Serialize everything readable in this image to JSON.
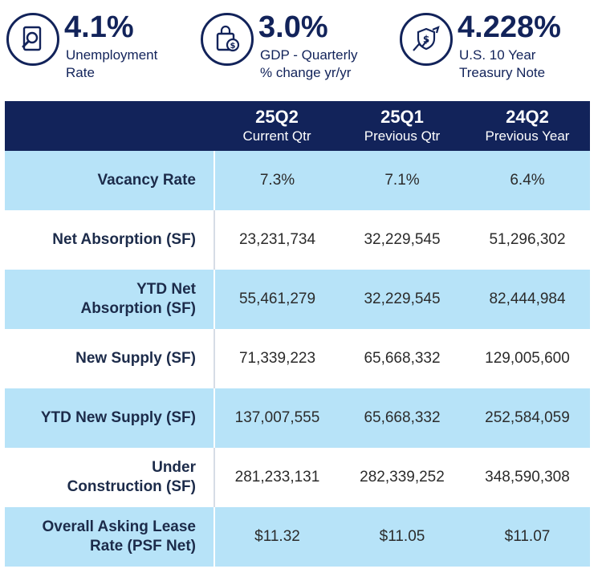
{
  "indicators": [
    {
      "value": "4.1%",
      "label_lines": [
        "Unemployment",
        "Rate"
      ],
      "icon": "magnifier-document-icon"
    },
    {
      "value": "3.0%",
      "label_lines": [
        "GDP - Quarterly",
        "% change yr/yr"
      ],
      "icon": "shopping-bag-coin-icon"
    },
    {
      "value": "4.228%",
      "label_lines": [
        "U.S. 10 Year",
        "Treasury Note"
      ],
      "icon": "dollar-shield-chart-icon"
    }
  ],
  "table": {
    "columns": [
      {
        "period": "25Q2",
        "sub": "Current Qtr"
      },
      {
        "period": "25Q1",
        "sub": "Previous Qtr"
      },
      {
        "period": "24Q2",
        "sub": "Previous Year"
      }
    ],
    "rows": [
      {
        "label_lines": [
          "Vacancy Rate"
        ],
        "values": [
          "7.3%",
          "7.1%",
          "6.4%"
        ]
      },
      {
        "label_lines": [
          "Net Absorption (SF)"
        ],
        "values": [
          "23,231,734",
          "32,229,545",
          "51,296,302"
        ]
      },
      {
        "label_lines": [
          "YTD Net",
          "Absorption (SF)"
        ],
        "values": [
          "55,461,279",
          "32,229,545",
          "82,444,984"
        ]
      },
      {
        "label_lines": [
          "New Supply (SF)"
        ],
        "values": [
          "71,339,223",
          "65,668,332",
          "129,005,600"
        ]
      },
      {
        "label_lines": [
          "YTD New Supply (SF)"
        ],
        "values": [
          "137,007,555",
          "65,668,332",
          "252,584,059"
        ]
      },
      {
        "label_lines": [
          "Under",
          "Construction (SF)"
        ],
        "values": [
          "281,233,131",
          "282,339,252",
          "348,590,308"
        ]
      },
      {
        "label_lines": [
          "Overall Asking Lease",
          "Rate (PSF Net)"
        ],
        "values": [
          "$11.32",
          "$11.05",
          "$11.07"
        ]
      }
    ]
  },
  "colors": {
    "navy": "#12235a",
    "light_blue": "#b7e3f8"
  }
}
